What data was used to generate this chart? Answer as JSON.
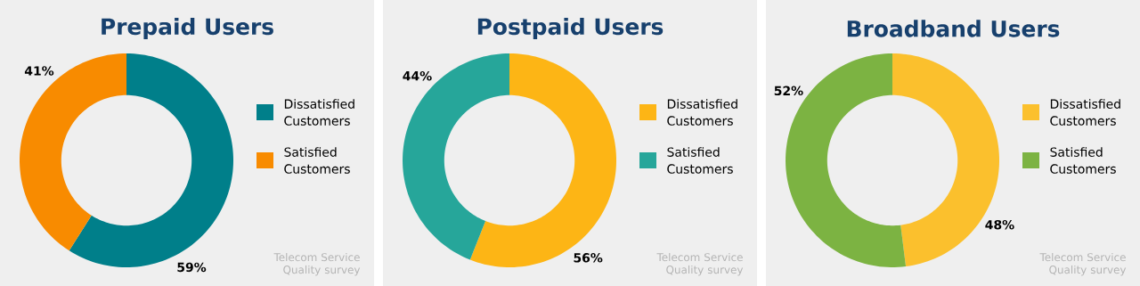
{
  "chart_data": [
    {
      "type": "donut",
      "title": "Prepaid Users",
      "categories": [
        "Dissatisfied Customers",
        "Satisfied Customers"
      ],
      "values": [
        59,
        41
      ],
      "colors": [
        "#007f8a",
        "#f88b00"
      ],
      "value_labels": [
        "59%",
        "41%"
      ],
      "legend": "right",
      "annotations": [
        "Telecom Service Quality survey"
      ]
    },
    {
      "type": "donut",
      "title": "Postpaid Users",
      "categories": [
        "Dissatisfied Customers",
        "Satisfied Customers"
      ],
      "values": [
        56,
        44
      ],
      "colors": [
        "#fdb515",
        "#26a69a"
      ],
      "value_labels": [
        "56%",
        "44%"
      ],
      "legend": "right",
      "annotations": [
        "Telecom Service Quality survey"
      ]
    },
    {
      "type": "donut",
      "title": "Broadband Users",
      "categories": [
        "Dissatisfied Customers",
        "Satisfied Customers"
      ],
      "values": [
        48,
        52
      ],
      "colors": [
        "#fbc02d",
        "#7cb342"
      ],
      "value_labels": [
        "48%",
        "52%"
      ],
      "legend": "right",
      "annotations": [
        "Telecom Service Quality survey"
      ]
    }
  ]
}
